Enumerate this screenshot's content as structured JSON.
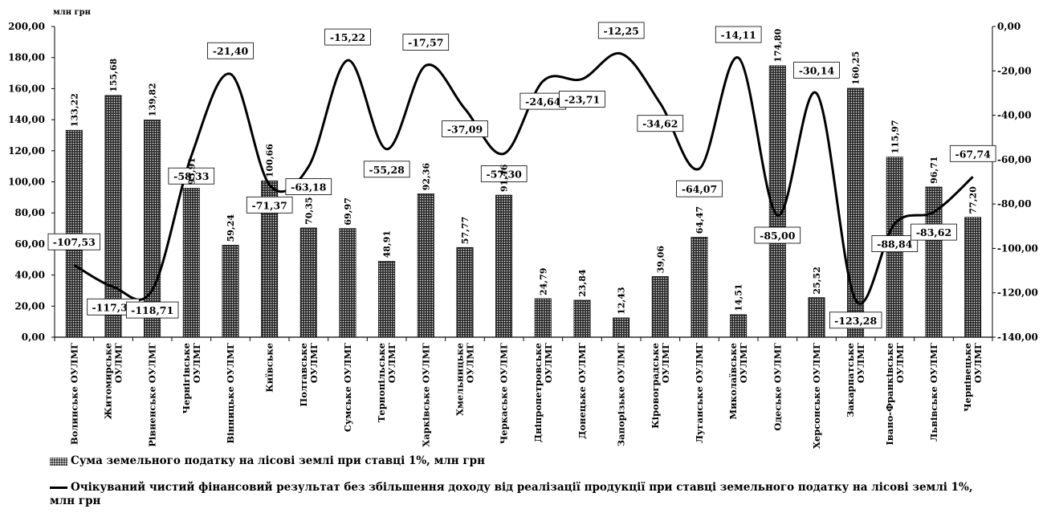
{
  "chart_data": {
    "type": "bar+line",
    "unit_label": "млн грн",
    "categories": [
      [
        "Волинське ОУЛМГ"
      ],
      [
        "Житомирське",
        "ОУЛМГ"
      ],
      [
        "Рівненське ОУЛМГ"
      ],
      [
        "Чернігівське",
        "ОУЛМГ"
      ],
      [
        "Вінницьке ОУЛМГ"
      ],
      [
        "Київське"
      ],
      [
        "Полтавське",
        "ОУЛМГ"
      ],
      [
        "Сумське ОУЛМГ"
      ],
      [
        "Тернопільське",
        "ОУЛМГ"
      ],
      [
        "Харківське ОУЛМГ"
      ],
      [
        "Хмельницьке",
        "ОУЛМГ"
      ],
      [
        "Черкаське ОУЛМГ"
      ],
      [
        "Дніпропетровське",
        "ОУЛМГ"
      ],
      [
        "Донецьке ОУЛМГ"
      ],
      [
        "Запорізьке ОУЛМГ"
      ],
      [
        "Кіровоградське",
        "ОУЛМГ"
      ],
      [
        "Луганське ОУЛМГ"
      ],
      [
        "Миколаївське",
        "ОУЛМГ"
      ],
      [
        "Одеське ОУЛМГ"
      ],
      [
        "Херсонське ОУЛМГ"
      ],
      [
        "Закарпатське",
        "ОУЛМГ"
      ],
      [
        "Івано-Франківське",
        "ОУЛМГ"
      ],
      [
        "Львівське ОУЛМГ"
      ],
      [
        "Чернівецьке",
        "ОУЛМГ"
      ]
    ],
    "bar_series": {
      "name": "Сума земельного податку на лісові землі при ставці 1%, млн грн",
      "values": [
        133.22,
        155.68,
        139.82,
        95.91,
        59.24,
        100.66,
        70.35,
        69.97,
        48.91,
        92.36,
        57.77,
        91.46,
        24.79,
        23.84,
        12.43,
        39.06,
        64.47,
        14.51,
        174.8,
        25.52,
        160.25,
        115.97,
        96.71,
        77.2
      ],
      "labels": [
        "133,22",
        "155,68",
        "139,82",
        "95,91",
        "59,24",
        "100,66",
        "70,35",
        "69,97",
        "48,91",
        "92,36",
        "57,77",
        "91,46",
        "24,79",
        "23,84",
        "12,43",
        "39,06",
        "64,47",
        "14,51",
        "174,80",
        "25,52",
        "160,25",
        "115,97",
        "96,71",
        "77,20"
      ]
    },
    "line_series": {
      "name": "Очікуваний чистий фінансовий результат без збільшення доходу від реалізації продукції при ставці земельного податку на лісові землі 1%, млн грн",
      "values": [
        -107.53,
        -117.31,
        -118.71,
        -58.33,
        -21.4,
        -71.37,
        -63.18,
        -15.22,
        -55.28,
        -17.57,
        -37.09,
        -57.3,
        -24.64,
        -23.71,
        -12.25,
        -34.62,
        -64.07,
        -14.11,
        -85.0,
        -30.14,
        -123.28,
        -88.84,
        -83.62,
        -67.74
      ],
      "labels": [
        "-107,53",
        "-117,31",
        "-118,71",
        "-58,33",
        "-21,40",
        "-71,37",
        "-63,18",
        "-15,22",
        "-55,28",
        "-17,57",
        "-37,09",
        "-57,30",
        "-24,64",
        "-23,71",
        "-12,25",
        "-34,62",
        "-64,07",
        "-14,11",
        "-85,00",
        "-30,14",
        "-123,28",
        "-88,84",
        "-83,62",
        "-67,74"
      ]
    },
    "left_axis": {
      "ylim": [
        0,
        200
      ],
      "ticks": [
        "0,00",
        "20,00",
        "40,00",
        "60,00",
        "80,00",
        "100,00",
        "120,00",
        "140,00",
        "160,00",
        "180,00",
        "200,00"
      ]
    },
    "right_axis": {
      "ylim": [
        -140,
        0
      ],
      "ticks": [
        "-140,00",
        "-120,00",
        "-100,00",
        "-80,00",
        "-60,00",
        "-40,00",
        "-20,00",
        "0,00"
      ]
    },
    "grid": false,
    "legend": "bottom"
  },
  "legend": {
    "bar_text": "Сума земельного податку на лісові землі при ставці 1%, млн грн",
    "line_text_1": "Очікуваний чистий фінансовий результат без збільшення доходу від реалізації продукції при ставці земельного податку на лісові землі 1%,",
    "line_text_2": "млн грн"
  }
}
